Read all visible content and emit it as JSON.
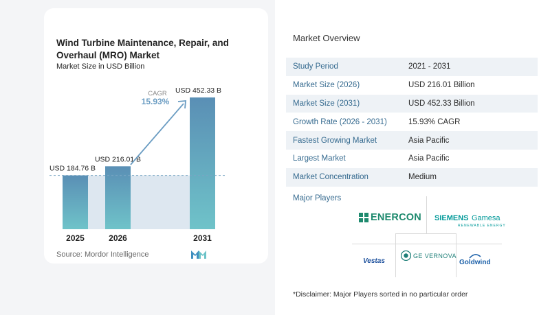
{
  "chart_title": "Wind Turbine Maintenance, Repair, and Overhaul (MRO) Market",
  "chart_subtitle": "Market Size in USD Billion",
  "source": "Source: Mordor Intelligence",
  "cagr_label": "CAGR",
  "cagr_value": "15.93%",
  "chart_data": {
    "type": "bar",
    "categories": [
      "2025",
      "2026",
      "2031"
    ],
    "values": [
      184.76,
      216.01,
      452.33
    ],
    "data_labels": [
      "USD 184.76 B",
      "USD 216.01 B",
      "USD 452.33 B"
    ],
    "title": "Wind Turbine Maintenance, Repair, and Overhaul (MRO) Market",
    "subtitle": "Market Size in USD Billion",
    "ylim": [
      0,
      452.33
    ],
    "grid": false
  },
  "overview": {
    "title": "Market Overview",
    "rows": [
      {
        "label": "Study Period",
        "value": "2021 - 2031"
      },
      {
        "label": "Market Size (2026)",
        "value": "USD 216.01 Billion"
      },
      {
        "label": "Market Size (2031)",
        "value": "USD 452.33 Billion"
      },
      {
        "label": "Growth Rate (2026 - 2031)",
        "value": "15.93% CAGR"
      },
      {
        "label": "Fastest Growing Market",
        "value": "Asia Pacific"
      },
      {
        "label": "Largest Market",
        "value": "Asia Pacific"
      },
      {
        "label": "Market Concentration",
        "value": "Medium"
      }
    ]
  },
  "players": {
    "title": "Major Players",
    "enercon": "ENERCON",
    "siemens_1": "SIEMENS",
    "siemens_2": "Gamesa",
    "siemens_sub": "RENEWABLE ENERGY",
    "vestas": "Vestas",
    "ge": "GE VERNOVA",
    "goldwind": "Goldwind"
  },
  "disclaimer": "*Disclaimer: Major Players sorted in no particular order",
  "colors": {
    "bar_top": "#5a8fb5",
    "bar_bottom": "#6fc3c9",
    "shade": "#dde7f0",
    "arrow": "#6a9cc2",
    "accent": "#356a8f",
    "enercon": "#1e8a6e",
    "siemens": "#009999",
    "vestas": "#1b4f9c",
    "goldwind": "#1a5fa8"
  }
}
